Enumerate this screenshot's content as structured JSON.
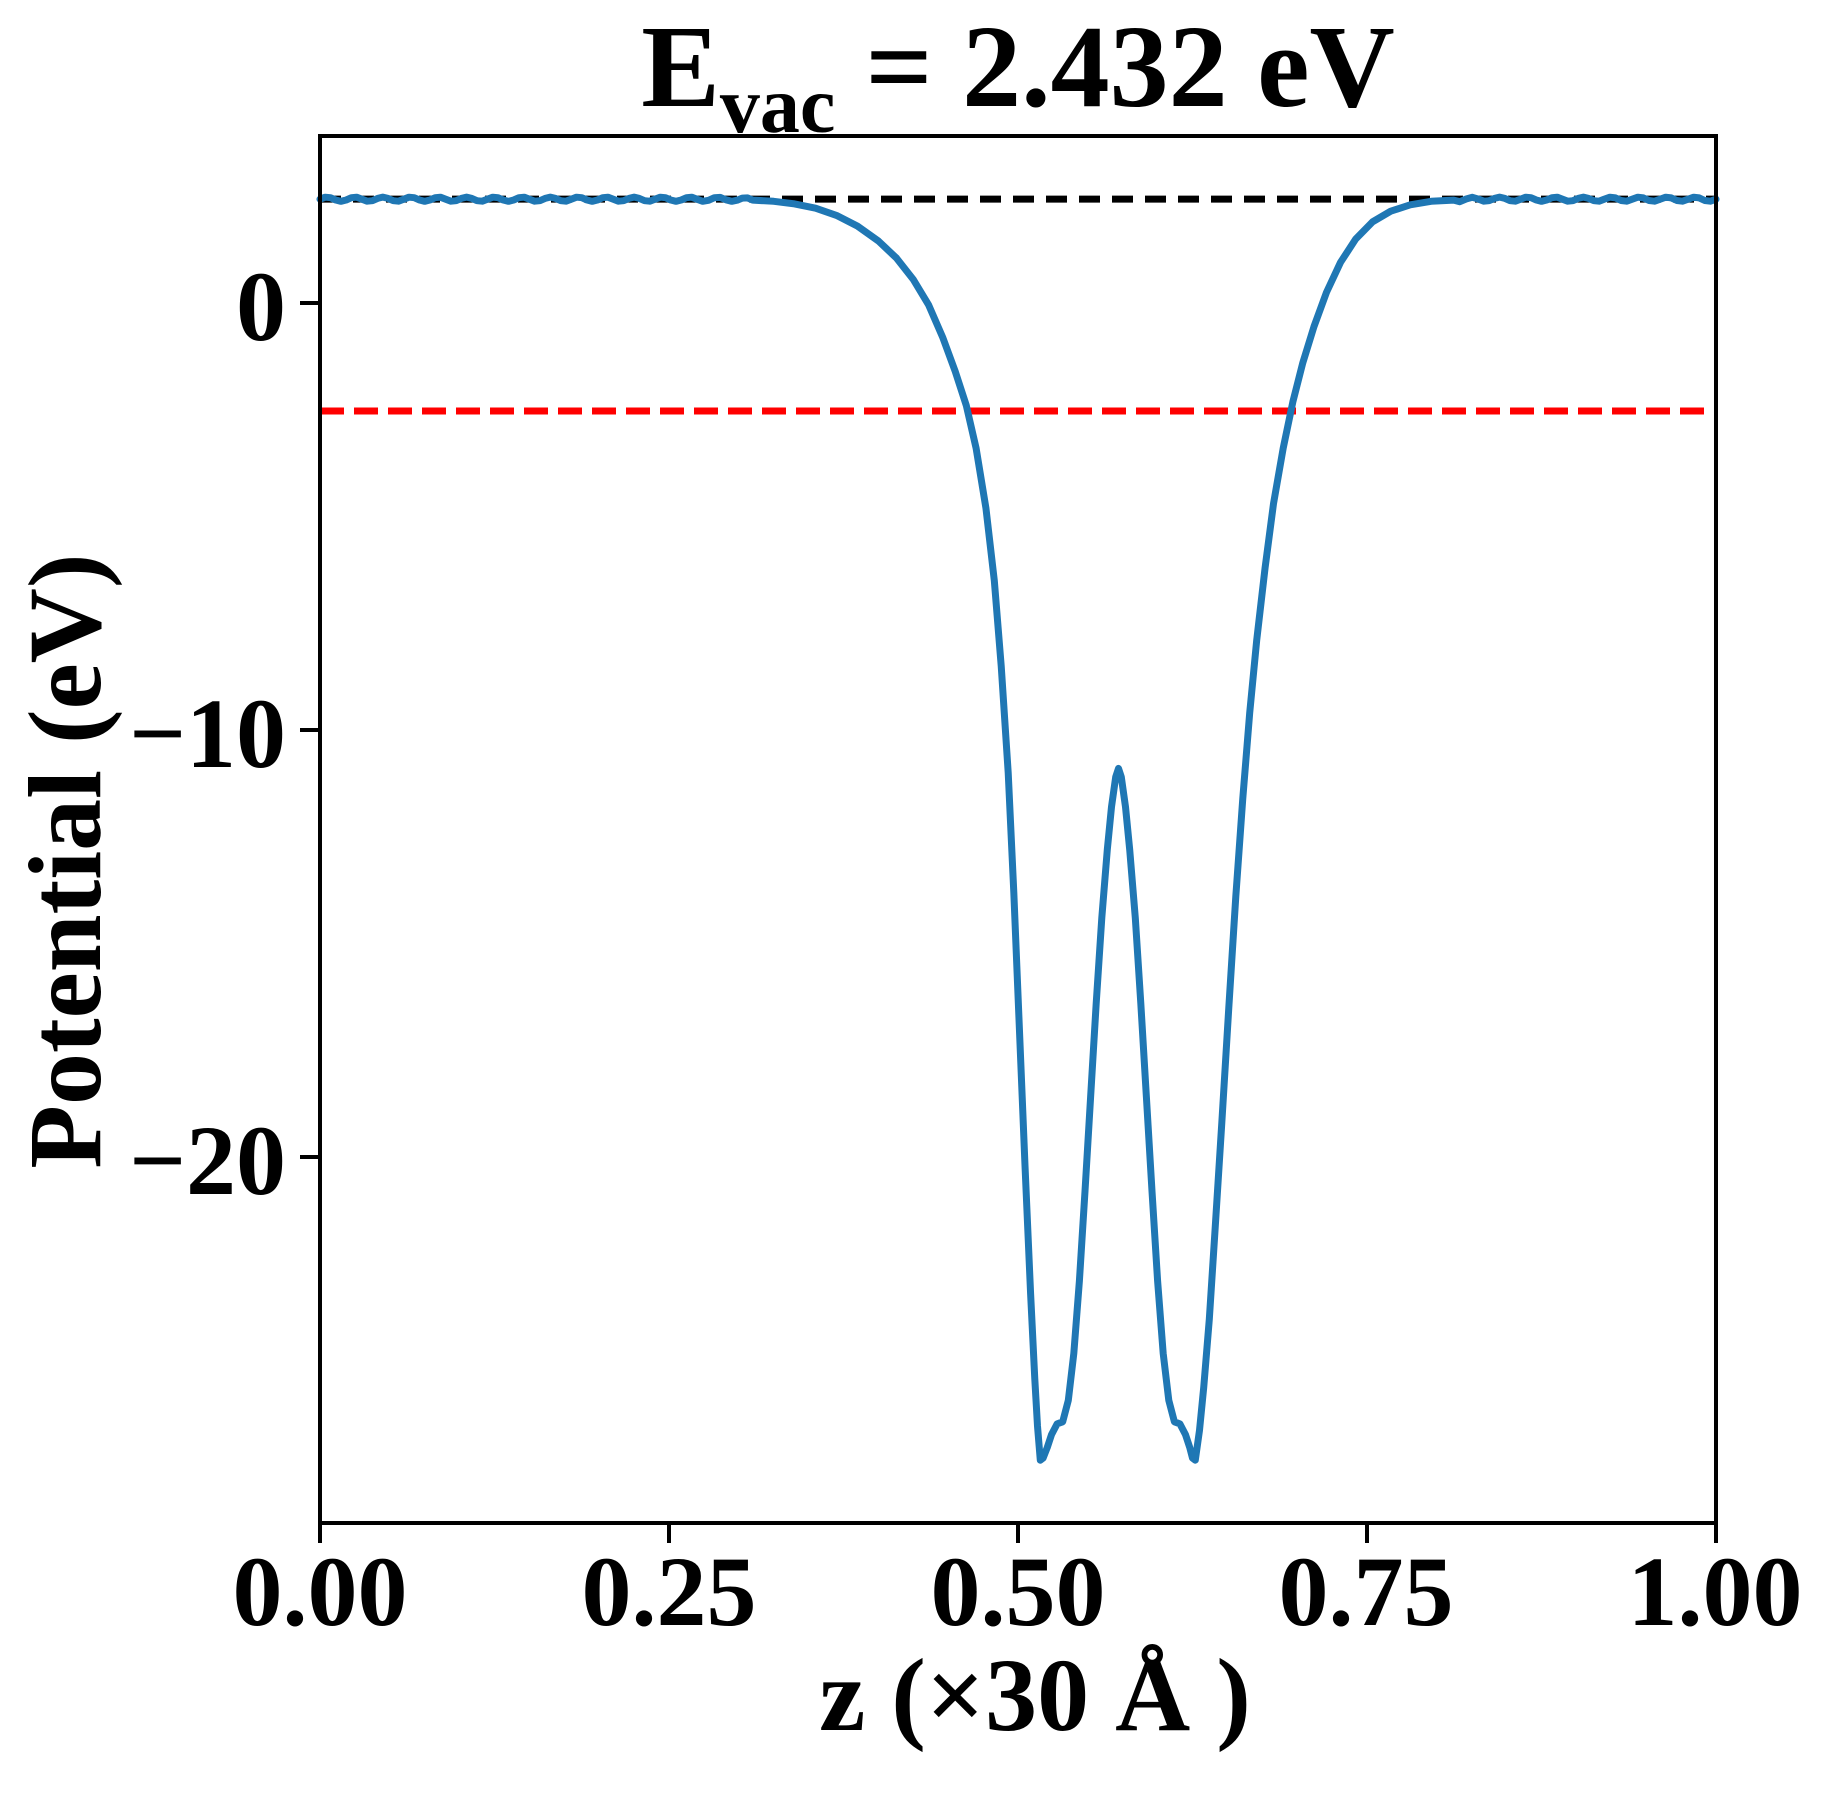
{
  "title": {
    "e_symbol": "E",
    "e_subscript": "vac",
    "equation": "= 2.432 eV"
  },
  "chart_data": {
    "type": "line",
    "title": "E_vac = 2.432 eV",
    "xlabel": "z (×30 Å )",
    "ylabel": "Potential (eV)",
    "xlim": [
      0.0,
      1.0
    ],
    "ylim": [
      -28.57,
      3.91
    ],
    "grid": false,
    "legend": "none",
    "x_ticks": {
      "values": [
        0.0,
        0.25,
        0.5,
        0.75,
        1.0
      ],
      "labels": [
        "0.00",
        "0.25",
        "0.50",
        "0.75",
        "1.00"
      ]
    },
    "y_ticks": {
      "values": [
        0,
        -10,
        -20
      ],
      "labels": [
        "0",
        "−10",
        "−20"
      ]
    },
    "plateau_ripple": {
      "amplitude": 0.05,
      "wavelength": 0.02,
      "threshold": 2.4
    },
    "series": [
      {
        "id": "vacuum-level-line",
        "name": "vacuum level E_vac = 2.432 eV",
        "type": "hline",
        "y": 2.432,
        "color": "#000000",
        "linewidth": 7,
        "dash": [
          21,
          12
        ]
      },
      {
        "id": "fermi-level-line",
        "name": "Fermi level",
        "type": "hline",
        "y": -2.53,
        "color": "#ff0000",
        "linewidth": 7,
        "dash": [
          24,
          10
        ]
      },
      {
        "id": "potential-curve",
        "name": "planar-averaged electrostatic potential",
        "type": "curve",
        "color": "#1f77b4",
        "linewidth": 7,
        "points": [
          [
            0.0,
            2.43
          ],
          [
            0.03,
            2.43
          ],
          [
            0.06,
            2.43
          ],
          [
            0.09,
            2.43
          ],
          [
            0.12,
            2.43
          ],
          [
            0.15,
            2.43
          ],
          [
            0.18,
            2.43
          ],
          [
            0.21,
            2.43
          ],
          [
            0.24,
            2.43
          ],
          [
            0.27,
            2.43
          ],
          [
            0.295,
            2.43
          ],
          [
            0.31,
            2.41
          ],
          [
            0.325,
            2.38
          ],
          [
            0.34,
            2.32
          ],
          [
            0.355,
            2.22
          ],
          [
            0.37,
            2.05
          ],
          [
            0.385,
            1.8
          ],
          [
            0.4,
            1.45
          ],
          [
            0.413,
            1.05
          ],
          [
            0.425,
            0.55
          ],
          [
            0.436,
            -0.05
          ],
          [
            0.446,
            -0.8
          ],
          [
            0.455,
            -1.6
          ],
          [
            0.463,
            -2.4
          ],
          [
            0.47,
            -3.4
          ],
          [
            0.477,
            -4.8
          ],
          [
            0.483,
            -6.5
          ],
          [
            0.488,
            -8.5
          ],
          [
            0.493,
            -11.0
          ],
          [
            0.497,
            -13.8
          ],
          [
            0.501,
            -17.0
          ],
          [
            0.505,
            -20.2
          ],
          [
            0.509,
            -23.2
          ],
          [
            0.512,
            -25.2
          ],
          [
            0.514,
            -26.3
          ],
          [
            0.516,
            -27.1
          ],
          [
            0.518,
            -27.05
          ],
          [
            0.521,
            -26.8
          ],
          [
            0.524,
            -26.5
          ],
          [
            0.528,
            -26.25
          ],
          [
            0.532,
            -26.2
          ],
          [
            0.536,
            -25.7
          ],
          [
            0.54,
            -24.6
          ],
          [
            0.544,
            -22.9
          ],
          [
            0.548,
            -20.8
          ],
          [
            0.552,
            -18.6
          ],
          [
            0.556,
            -16.4
          ],
          [
            0.56,
            -14.4
          ],
          [
            0.564,
            -12.8
          ],
          [
            0.567,
            -11.8
          ],
          [
            0.57,
            -11.1
          ],
          [
            0.572,
            -10.9
          ],
          [
            0.574,
            -11.1
          ],
          [
            0.577,
            -11.8
          ],
          [
            0.58,
            -12.8
          ],
          [
            0.584,
            -14.4
          ],
          [
            0.588,
            -16.4
          ],
          [
            0.592,
            -18.6
          ],
          [
            0.596,
            -20.8
          ],
          [
            0.6,
            -22.9
          ],
          [
            0.604,
            -24.6
          ],
          [
            0.608,
            -25.7
          ],
          [
            0.612,
            -26.2
          ],
          [
            0.616,
            -26.25
          ],
          [
            0.62,
            -26.5
          ],
          [
            0.623,
            -26.8
          ],
          [
            0.625,
            -27.05
          ],
          [
            0.627,
            -27.1
          ],
          [
            0.63,
            -26.4
          ],
          [
            0.633,
            -25.4
          ],
          [
            0.637,
            -23.8
          ],
          [
            0.641,
            -21.8
          ],
          [
            0.646,
            -19.2
          ],
          [
            0.651,
            -16.5
          ],
          [
            0.656,
            -13.9
          ],
          [
            0.661,
            -11.6
          ],
          [
            0.666,
            -9.6
          ],
          [
            0.671,
            -7.9
          ],
          [
            0.677,
            -6.2
          ],
          [
            0.683,
            -4.7
          ],
          [
            0.69,
            -3.4
          ],
          [
            0.697,
            -2.3
          ],
          [
            0.704,
            -1.4
          ],
          [
            0.712,
            -0.55
          ],
          [
            0.721,
            0.25
          ],
          [
            0.731,
            0.95
          ],
          [
            0.742,
            1.5
          ],
          [
            0.754,
            1.9
          ],
          [
            0.767,
            2.15
          ],
          [
            0.781,
            2.3
          ],
          [
            0.796,
            2.38
          ],
          [
            0.812,
            2.41
          ],
          [
            0.83,
            2.43
          ],
          [
            0.86,
            2.43
          ],
          [
            0.89,
            2.43
          ],
          [
            0.92,
            2.43
          ],
          [
            0.96,
            2.43
          ],
          [
            1.0,
            2.43
          ]
        ]
      }
    ]
  }
}
